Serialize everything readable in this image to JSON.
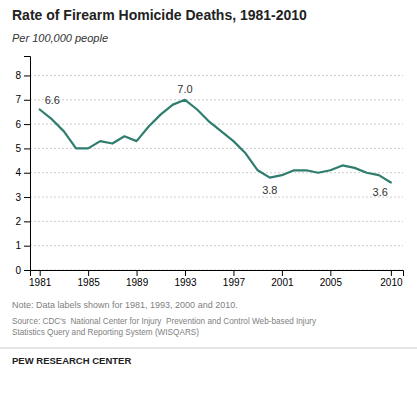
{
  "chart_data": {
    "type": "line",
    "title": "Rate of Firearm Homicide Deaths, 1981-2010",
    "ylabel": "Per 100,000 people",
    "x": [
      1981,
      1982,
      1983,
      1984,
      1985,
      1986,
      1987,
      1988,
      1989,
      1990,
      1991,
      1992,
      1993,
      1994,
      1995,
      1996,
      1997,
      1998,
      1999,
      2000,
      2001,
      2002,
      2003,
      2004,
      2005,
      2006,
      2007,
      2008,
      2009,
      2010
    ],
    "values": [
      6.6,
      6.2,
      5.7,
      5.0,
      5.0,
      5.3,
      5.2,
      5.5,
      5.3,
      5.9,
      6.4,
      6.8,
      7.0,
      6.6,
      6.1,
      5.7,
      5.3,
      4.8,
      4.1,
      3.8,
      3.9,
      4.1,
      4.1,
      4.0,
      4.1,
      4.3,
      4.2,
      4.0,
      3.9,
      3.6
    ],
    "value_labels": [
      "6.6",
      null,
      null,
      null,
      null,
      null,
      null,
      null,
      null,
      null,
      null,
      null,
      "7.0",
      null,
      null,
      null,
      null,
      null,
      null,
      "3.8",
      null,
      null,
      null,
      null,
      null,
      null,
      null,
      null,
      null,
      "3.6"
    ],
    "color": "#2E7D6E",
    "xlim": [
      1980.2,
      2011
    ],
    "xticks": [
      1981,
      1985,
      1989,
      1993,
      1997,
      2001,
      2005,
      2010
    ],
    "ylim": [
      0,
      8.8
    ],
    "yticks": [
      0,
      1,
      2,
      3,
      4,
      5,
      6,
      7,
      8
    ],
    "grid": true,
    "annotations": [
      "Note: Data labels shown for 1981, 1993, 2000 and 2010.",
      "Source: CDC's  National Center for Injury  Prevention and Control Web-based Injury\nStatistics Query and Reporting System (WISQARS)",
      "PEW RESEARCH CENTER"
    ]
  }
}
